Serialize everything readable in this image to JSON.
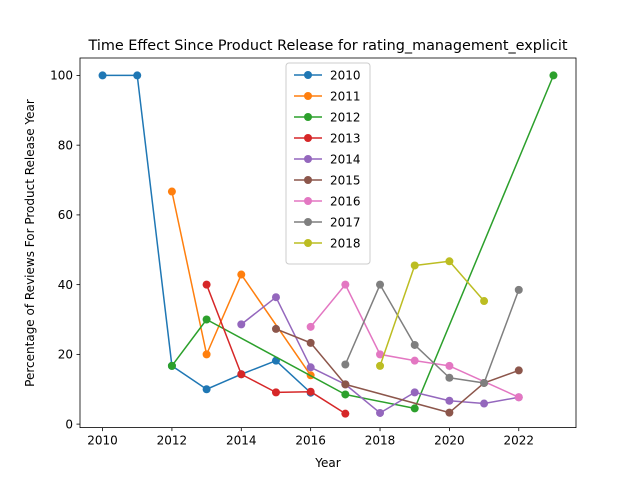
{
  "chart_data": {
    "type": "line",
    "title": "Time Effect Since Product Release for rating_management_explicit",
    "xlabel": "Year",
    "ylabel": "Percentage of Reviews For Product Release Year",
    "xlim": [
      2009.35,
      2023.65
    ],
    "ylim": [
      -1,
      105
    ],
    "xticks": [
      2010,
      2012,
      2014,
      2016,
      2018,
      2020,
      2022
    ],
    "yticks": [
      0,
      20,
      40,
      60,
      80,
      100
    ],
    "grid": false,
    "legend_position": "top-center",
    "series": [
      {
        "name": "2010",
        "color": "#1f77b4",
        "x": [
          2010,
          2011,
          2012,
          2013,
          2014,
          2015,
          2016
        ],
        "y": [
          100,
          100,
          16.7,
          10,
          14.3,
          18.2,
          9
        ]
      },
      {
        "name": "2011",
        "color": "#ff7f0e",
        "x": [
          2012,
          2013,
          2014,
          2016
        ],
        "y": [
          66.7,
          20,
          42.9,
          14
        ]
      },
      {
        "name": "2012",
        "color": "#2ca02c",
        "x": [
          2012,
          2013,
          2017,
          2019,
          2023
        ],
        "y": [
          16.7,
          30,
          8.5,
          4.5,
          100
        ]
      },
      {
        "name": "2013",
        "color": "#d62728",
        "x": [
          2013,
          2014,
          2015,
          2016,
          2017
        ],
        "y": [
          40,
          14.3,
          9.1,
          9.3,
          3
        ]
      },
      {
        "name": "2014",
        "color": "#9467bd",
        "x": [
          2014,
          2015,
          2016,
          2017,
          2018,
          2019,
          2020,
          2021,
          2022
        ],
        "y": [
          28.6,
          36.4,
          16.3,
          11.4,
          3.2,
          9.1,
          6.7,
          5.9,
          7.7
        ]
      },
      {
        "name": "2015",
        "color": "#8c564b",
        "x": [
          2015,
          2016,
          2017,
          2020,
          2021,
          2022
        ],
        "y": [
          27.3,
          23.3,
          11.4,
          3.3,
          11.8,
          15.4
        ]
      },
      {
        "name": "2016",
        "color": "#e377c2",
        "x": [
          2016,
          2017,
          2018,
          2019,
          2020,
          2022
        ],
        "y": [
          27.9,
          40,
          20,
          18.2,
          16.7,
          7.7
        ]
      },
      {
        "name": "2017",
        "color": "#7f7f7f",
        "x": [
          2017,
          2018,
          2019,
          2020,
          2021,
          2022
        ],
        "y": [
          17.1,
          40,
          22.7,
          13.3,
          11.8,
          38.5
        ]
      },
      {
        "name": "2018",
        "color": "#bcbd22",
        "x": [
          2018,
          2019,
          2020,
          2021
        ],
        "y": [
          16.7,
          45.5,
          46.7,
          35.3
        ]
      }
    ]
  }
}
